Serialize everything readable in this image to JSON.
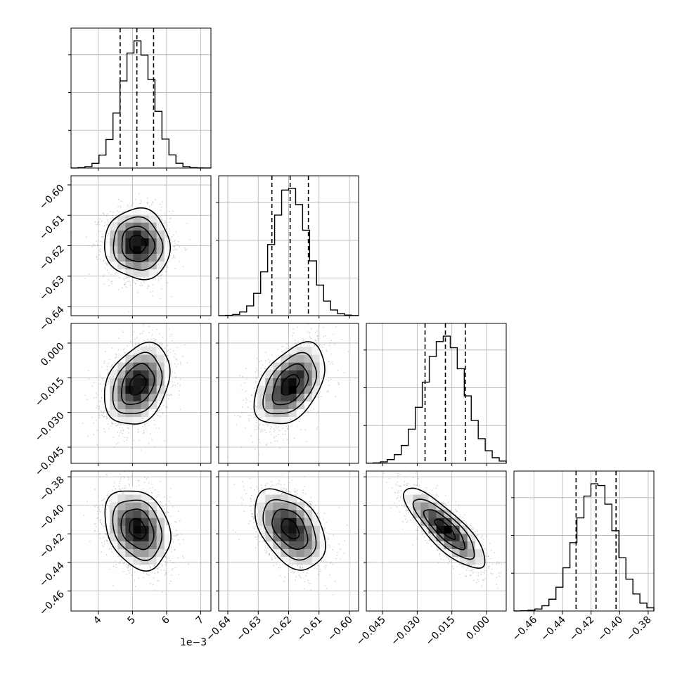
{
  "chart_data": {
    "type": "corner",
    "colors": {
      "line": "#000000",
      "grid": "#b0b0b0",
      "scatter": "#8a8a8a",
      "cmap_dark": "#000000",
      "cmap_light": "#ffffff"
    },
    "grid": true,
    "x_offset_label": "1e−3",
    "params": [
      {
        "name": "",
        "scale": 0.001,
        "range": [
          3.2,
          7.3
        ],
        "ticks": [
          4,
          5,
          6,
          7
        ],
        "tick_labels": [
          "4",
          "5",
          "6",
          "7"
        ],
        "quantiles": [
          4.64,
          5.13,
          5.62
        ],
        "mean": 5.15,
        "std": 0.48
      },
      {
        "name": "",
        "scale": 1,
        "range": [
          -0.643,
          -0.597
        ],
        "ticks": [
          -0.64,
          -0.63,
          -0.62,
          -0.61,
          -0.6
        ],
        "tick_labels": [
          "−0.64",
          "−0.63",
          "−0.62",
          "−0.61",
          "−0.60"
        ],
        "quantiles": [
          -0.6255,
          -0.6195,
          -0.6135
        ],
        "mean": -0.6195,
        "std": 0.0058
      },
      {
        "name": "",
        "scale": 1,
        "range": [
          -0.052,
          0.0085
        ],
        "ticks": [
          -0.045,
          -0.03,
          -0.015,
          0.0
        ],
        "tick_labels": [
          "−0.045",
          "−0.030",
          "−0.015",
          "0.000"
        ],
        "quantiles": [
          -0.0266,
          -0.0178,
          -0.0092
        ],
        "mean": -0.018,
        "std": 0.0088
      },
      {
        "name": "",
        "scale": 1,
        "range": [
          -0.474,
          -0.376
        ],
        "ticks": [
          -0.46,
          -0.44,
          -0.42,
          -0.4,
          -0.38
        ],
        "tick_labels": [
          "−0.46",
          "−0.44",
          "−0.42",
          "−0.40",
          "−0.38"
        ],
        "quantiles": [
          -0.4305,
          -0.4165,
          -0.4025
        ],
        "mean": -0.4165,
        "std": 0.014
      }
    ],
    "correlations": [
      {
        "pair": [
          0,
          1
        ],
        "rho": -0.05
      },
      {
        "pair": [
          0,
          2
        ],
        "rho": 0.3
      },
      {
        "pair": [
          1,
          2
        ],
        "rho": 0.45
      },
      {
        "pair": [
          0,
          3
        ],
        "rho": -0.25
      },
      {
        "pair": [
          1,
          3
        ],
        "rho": -0.42
      },
      {
        "pair": [
          2,
          3
        ],
        "rho": -0.82
      }
    ]
  }
}
